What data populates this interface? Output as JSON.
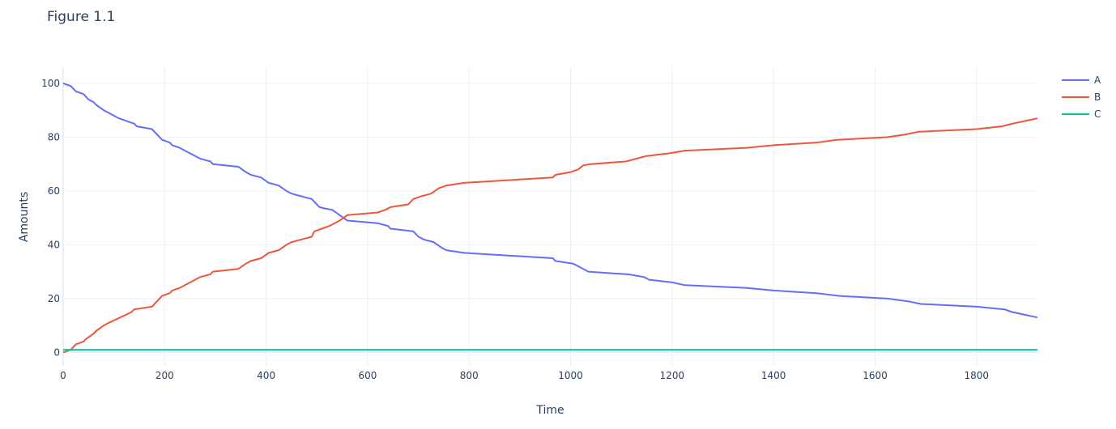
{
  "chart_data": {
    "type": "line",
    "title": "Figure 1.1",
    "xlabel": "Time",
    "ylabel": "Amounts",
    "xlim": [
      0,
      1920
    ],
    "ylim": [
      -5,
      106
    ],
    "x_ticks": [
      0,
      200,
      400,
      600,
      800,
      1000,
      1200,
      1400,
      1600,
      1800
    ],
    "y_ticks": [
      0,
      20,
      40,
      60,
      80,
      100
    ],
    "grid": true,
    "legend_position": "top-right",
    "series": [
      {
        "name": "A",
        "color": "#636efa",
        "points": [
          [
            0,
            100
          ],
          [
            15,
            99
          ],
          [
            25,
            97
          ],
          [
            40,
            96
          ],
          [
            50,
            94
          ],
          [
            60,
            93
          ],
          [
            65,
            92
          ],
          [
            80,
            90
          ],
          [
            90,
            89
          ],
          [
            110,
            87
          ],
          [
            140,
            85
          ],
          [
            145,
            84
          ],
          [
            175,
            83
          ],
          [
            185,
            81
          ],
          [
            195,
            79
          ],
          [
            210,
            78
          ],
          [
            215,
            77
          ],
          [
            230,
            76
          ],
          [
            240,
            75
          ],
          [
            260,
            73
          ],
          [
            270,
            72
          ],
          [
            290,
            71
          ],
          [
            295,
            70
          ],
          [
            345,
            69
          ],
          [
            360,
            67
          ],
          [
            370,
            66
          ],
          [
            390,
            65
          ],
          [
            405,
            63
          ],
          [
            425,
            62
          ],
          [
            440,
            60
          ],
          [
            450,
            59
          ],
          [
            470,
            58
          ],
          [
            490,
            57
          ],
          [
            495,
            56
          ],
          [
            505,
            54
          ],
          [
            515,
            53.5
          ],
          [
            530,
            53
          ],
          [
            545,
            51
          ],
          [
            560,
            49
          ],
          [
            620,
            48
          ],
          [
            640,
            47
          ],
          [
            645,
            46
          ],
          [
            690,
            45
          ],
          [
            700,
            43
          ],
          [
            710,
            42
          ],
          [
            730,
            41
          ],
          [
            745,
            39
          ],
          [
            755,
            38
          ],
          [
            790,
            37
          ],
          [
            965,
            35
          ],
          [
            970,
            34
          ],
          [
            1005,
            33
          ],
          [
            1015,
            32
          ],
          [
            1025,
            31
          ],
          [
            1035,
            30
          ],
          [
            1115,
            29
          ],
          [
            1145,
            28
          ],
          [
            1155,
            27
          ],
          [
            1200,
            26
          ],
          [
            1225,
            25
          ],
          [
            1345,
            24
          ],
          [
            1400,
            23
          ],
          [
            1485,
            22
          ],
          [
            1530,
            21
          ],
          [
            1625,
            20
          ],
          [
            1665,
            19
          ],
          [
            1690,
            18
          ],
          [
            1800,
            17
          ],
          [
            1855,
            16
          ],
          [
            1870,
            15
          ],
          [
            1920,
            13
          ]
        ]
      },
      {
        "name": "B",
        "color": "#ef553b",
        "points": [
          [
            0,
            0
          ],
          [
            15,
            1
          ],
          [
            25,
            3
          ],
          [
            40,
            4
          ],
          [
            45,
            5
          ],
          [
            60,
            7
          ],
          [
            65,
            8
          ],
          [
            80,
            10
          ],
          [
            90,
            11
          ],
          [
            135,
            15
          ],
          [
            140,
            16
          ],
          [
            175,
            17
          ],
          [
            185,
            19
          ],
          [
            195,
            21
          ],
          [
            210,
            22
          ],
          [
            215,
            23
          ],
          [
            230,
            24
          ],
          [
            240,
            25
          ],
          [
            260,
            27
          ],
          [
            270,
            28
          ],
          [
            290,
            29
          ],
          [
            295,
            30
          ],
          [
            345,
            31
          ],
          [
            360,
            33
          ],
          [
            370,
            34
          ],
          [
            390,
            35
          ],
          [
            405,
            37
          ],
          [
            425,
            38
          ],
          [
            440,
            40
          ],
          [
            450,
            41
          ],
          [
            470,
            42
          ],
          [
            490,
            43
          ],
          [
            495,
            45
          ],
          [
            510,
            46
          ],
          [
            525,
            47
          ],
          [
            545,
            49
          ],
          [
            560,
            51
          ],
          [
            620,
            52
          ],
          [
            635,
            53
          ],
          [
            645,
            54
          ],
          [
            680,
            55
          ],
          [
            690,
            57
          ],
          [
            705,
            58
          ],
          [
            725,
            59
          ],
          [
            740,
            61
          ],
          [
            755,
            62
          ],
          [
            790,
            63
          ],
          [
            965,
            65
          ],
          [
            970,
            66
          ],
          [
            1000,
            67
          ],
          [
            1015,
            68
          ],
          [
            1025,
            69.5
          ],
          [
            1040,
            70
          ],
          [
            1110,
            71
          ],
          [
            1130,
            72
          ],
          [
            1150,
            73
          ],
          [
            1195,
            74
          ],
          [
            1225,
            75
          ],
          [
            1345,
            76
          ],
          [
            1400,
            77
          ],
          [
            1485,
            78
          ],
          [
            1525,
            79
          ],
          [
            1625,
            80
          ],
          [
            1660,
            81
          ],
          [
            1685,
            82
          ],
          [
            1800,
            83
          ],
          [
            1850,
            84
          ],
          [
            1870,
            85
          ],
          [
            1920,
            87
          ]
        ]
      },
      {
        "name": "C",
        "color": "#00cc96",
        "points": [
          [
            0,
            1
          ],
          [
            1920,
            1
          ]
        ]
      }
    ]
  }
}
